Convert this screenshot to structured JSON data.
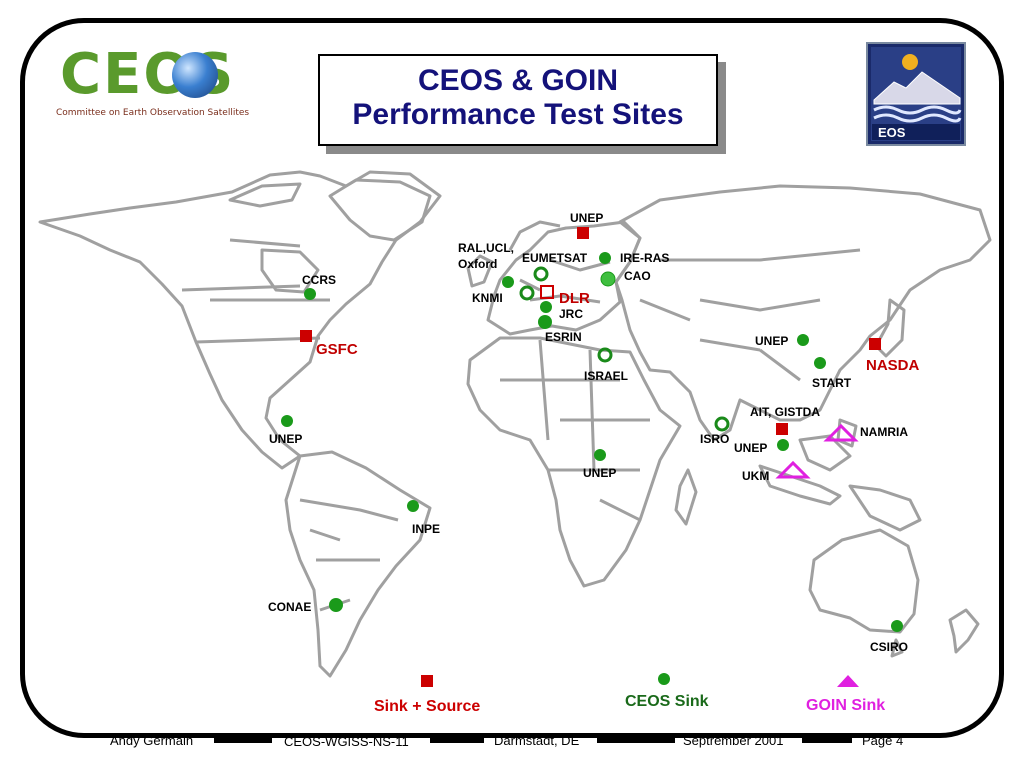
{
  "slide": {
    "title_line1": "CEOS & GOIN",
    "title_line2": "Performance Test Sites"
  },
  "logo": {
    "word": "CEOS",
    "subtitle": "Committee on Earth Observation Satellites"
  },
  "eos_logo": {
    "text": "EOS"
  },
  "colors": {
    "sink_source": "#cc0000",
    "ceos_sink": "#1a9a1a",
    "goin_sink": "#e020e0",
    "title": "#14127a",
    "map_line": "#a0a0a0"
  },
  "map": {
    "sites": [
      {
        "label": "UNEP",
        "type": "sink_source"
      },
      {
        "label": "RAL,UCL,\nOxford",
        "type": "ceos_sink_open"
      },
      {
        "label": "EUMETSAT",
        "type": "ceos_sink_open"
      },
      {
        "label": "IRE-RAS",
        "type": "ceos_sink"
      },
      {
        "label": "CAO",
        "type": "ceos_sink"
      },
      {
        "label": "KNMI",
        "type": "ceos_sink"
      },
      {
        "label": "DLR",
        "type": "sink_source_open"
      },
      {
        "label": "JRC",
        "type": "ceos_sink"
      },
      {
        "label": "ESRIN",
        "type": "ceos_sink"
      },
      {
        "label": "ISRAEL",
        "type": "ceos_sink_open"
      },
      {
        "label": "CCRS",
        "type": "ceos_sink"
      },
      {
        "label": "GSFC",
        "type": "sink_source"
      },
      {
        "label": "UNEP",
        "type": "ceos_sink"
      },
      {
        "label": "NASDA",
        "type": "sink_source"
      },
      {
        "label": "START",
        "type": "ceos_sink"
      },
      {
        "label": "AIT, GISTDA",
        "type": "sink_source"
      },
      {
        "label": "NAMRIA",
        "type": "goin_sink_open"
      },
      {
        "label": "ISRO",
        "type": "ceos_sink_open"
      },
      {
        "label": "UNEP",
        "type": "ceos_sink"
      },
      {
        "label": "UKM",
        "type": "goin_sink_open"
      },
      {
        "label": "UNEP",
        "type": "ceos_sink"
      },
      {
        "label": "UNEP",
        "type": "ceos_sink"
      },
      {
        "label": "INPE",
        "type": "ceos_sink"
      },
      {
        "label": "CONAE",
        "type": "ceos_sink"
      },
      {
        "label": "CSIRO",
        "type": "ceos_sink"
      }
    ]
  },
  "legend": {
    "sink_source": "Sink + Source",
    "ceos_sink": "CEOS Sink",
    "goin_sink": "GOIN Sink"
  },
  "footer": {
    "author": "Andy Germain",
    "doc": "CEOS-WGISS-NS-11",
    "location": "Darmstadt, DE",
    "date": "Septrember 2001",
    "page": "Page 4"
  }
}
